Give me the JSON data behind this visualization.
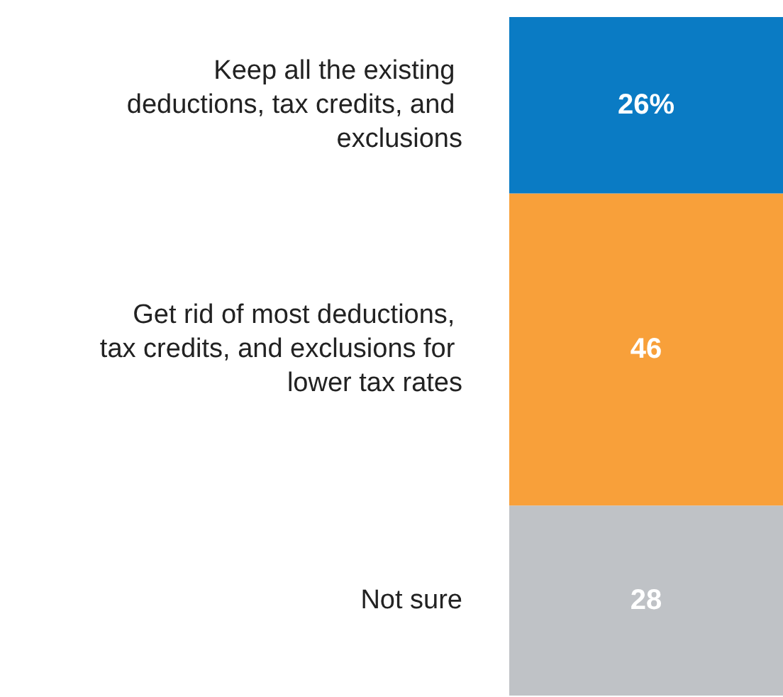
{
  "chart_data": {
    "type": "bar",
    "stacked": true,
    "categories": [
      null
    ],
    "series": [
      {
        "name": "Not sure",
        "color": "#bfc2c6",
        "values": [
          28
        ],
        "value_labels": [
          "28"
        ]
      },
      {
        "name": "Get rid of most deductions, tax credits, and exclusions for lower tax rates",
        "color": "#f8a03a",
        "values": [
          46
        ],
        "value_labels": [
          "46"
        ]
      },
      {
        "name": "Keep all the existing deductions, tax credits, and exclusions",
        "color": "#0a7bc4",
        "values": [
          26
        ],
        "value_labels": [
          "26%"
        ]
      }
    ],
    "legend": false
  }
}
